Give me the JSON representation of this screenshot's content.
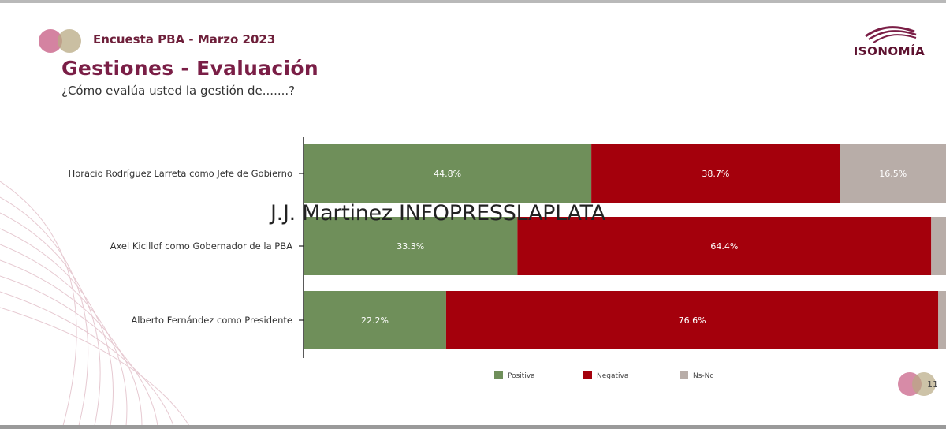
{
  "header": {
    "survey_label": "Encuesta PBA - Marzo 2023",
    "title": "Gestiones - Evaluación",
    "question": "¿Cómo evalúa usted la gestión de.......?"
  },
  "brand": {
    "name": "ISONOMÍA"
  },
  "watermark": "J.J. Martinez INFOPRESSLAPLATA",
  "page_number": "11",
  "colors": {
    "positiva": "#6f8f5a",
    "negativa": "#a4000c",
    "nsnc": "#b8ada8",
    "title": "#7a1e46"
  },
  "chart_data": {
    "type": "bar",
    "orientation": "horizontal",
    "stacked": true,
    "percent_stacked": true,
    "categories": [
      "Horacio Rodríguez Larreta como Jefe de Gobierno",
      "Axel Kicillof como Gobernador de la PBA",
      "Alberto Fernández como Presidente"
    ],
    "series": [
      {
        "name": "Positiva",
        "values": [
          44.8,
          33.3,
          22.2
        ],
        "labels": [
          "44.8%",
          "33.3%",
          "22.2%"
        ],
        "color": "#6f8f5a"
      },
      {
        "name": "Negativa",
        "values": [
          38.7,
          64.4,
          76.6
        ],
        "labels": [
          "38.7%",
          "64.4%",
          "76.6%"
        ],
        "color": "#a4000c"
      },
      {
        "name": "Ns-Nc",
        "values": [
          16.5,
          2.3,
          1.2
        ],
        "labels": [
          "16.5%",
          "",
          ""
        ],
        "color": "#b8ada8"
      }
    ],
    "xlim": [
      0,
      100
    ],
    "legend_position": "bottom",
    "grid": false
  }
}
